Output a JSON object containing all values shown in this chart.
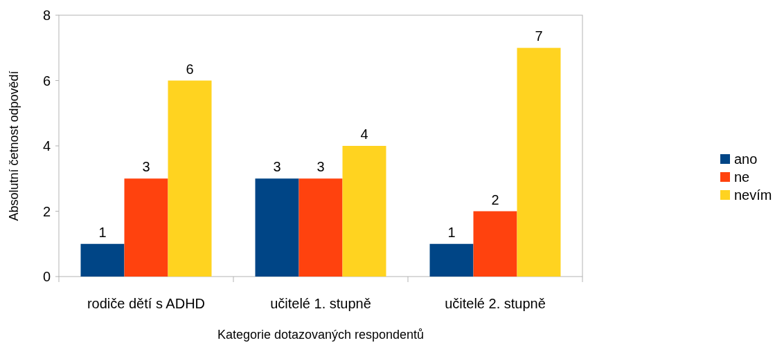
{
  "chart_data": {
    "type": "bar",
    "xlabel": "Kategorie dotazovaných respondentů",
    "ylabel": "Absolutní četnost odpovědí",
    "categories": [
      "rodiče dětí s ADHD",
      "učitelé 1. stupně",
      "učitelé 2. stupně"
    ],
    "series": [
      {
        "name": "ano",
        "color": "#004586",
        "values": [
          1,
          3,
          1
        ]
      },
      {
        "name": "ne",
        "color": "#ff420e",
        "values": [
          3,
          3,
          2
        ]
      },
      {
        "name": "nevím",
        "color": "#ffd320",
        "values": [
          6,
          4,
          7
        ]
      }
    ],
    "ylim": [
      0,
      8
    ],
    "yticks": [
      0,
      2,
      4,
      6,
      8
    ],
    "grid": false,
    "legend": "right",
    "data_labels": true
  }
}
